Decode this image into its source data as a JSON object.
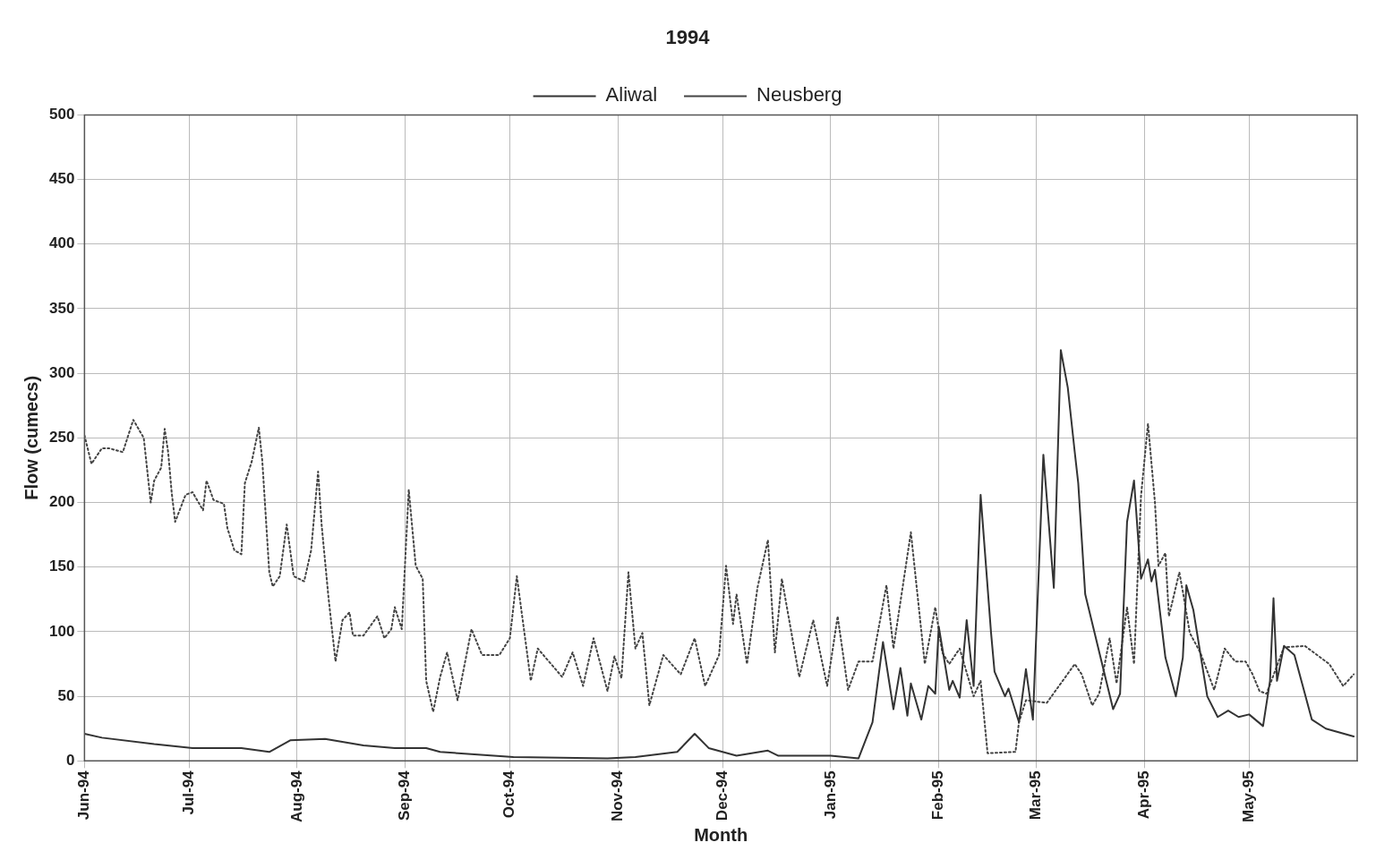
{
  "chart_data": {
    "type": "line",
    "title": "1994",
    "xlabel": "Month",
    "ylabel": "Flow (cumecs)",
    "xlim": [
      "1994-06-01",
      "1995-06-01"
    ],
    "xticks": [
      {
        "value": "1994-06-01",
        "label": "Jun-94"
      },
      {
        "value": "1994-07-01",
        "label": "Jul-94"
      },
      {
        "value": "1994-08-01",
        "label": "Aug-94"
      },
      {
        "value": "1994-09-01",
        "label": "Sep-94"
      },
      {
        "value": "1994-10-01",
        "label": "Oct-94"
      },
      {
        "value": "1994-11-01",
        "label": "Nov-94"
      },
      {
        "value": "1994-12-01",
        "label": "Dec-94"
      },
      {
        "value": "1995-01-01",
        "label": "Jan-95"
      },
      {
        "value": "1995-02-01",
        "label": "Feb-95"
      },
      {
        "value": "1995-03-01",
        "label": "Mar-95"
      },
      {
        "value": "1995-04-01",
        "label": "Apr-95"
      },
      {
        "value": "1995-05-01",
        "label": "May-95"
      }
    ],
    "ylim": [
      0,
      500
    ],
    "yticks": [
      0,
      50,
      100,
      150,
      200,
      250,
      300,
      350,
      400,
      450,
      500
    ],
    "grid": true,
    "legend": "top",
    "marker": "none",
    "series": [
      {
        "name": "Aliwal",
        "color": "#333333",
        "line_style": "solid",
        "x": [
          "1994-06-01",
          "1994-06-06",
          "1994-06-21",
          "1994-07-02",
          "1994-07-16",
          "1994-07-24",
          "1994-07-30",
          "1994-08-09",
          "1994-08-20",
          "1994-08-29",
          "1994-09-07",
          "1994-09-11",
          "1994-10-02",
          "1994-10-29",
          "1994-11-06",
          "1994-11-18",
          "1994-11-23",
          "1994-11-27",
          "1994-12-05",
          "1994-12-14",
          "1994-12-17",
          "1995-01-01",
          "1995-01-09",
          "1995-01-13",
          "1995-01-16",
          "1995-01-19",
          "1995-01-21",
          "1995-01-23",
          "1995-01-24",
          "1995-01-27",
          "1995-01-29",
          "1995-01-31",
          "1995-02-01",
          "1995-02-04",
          "1995-02-05",
          "1995-02-07",
          "1995-02-09",
          "1995-02-11",
          "1995-02-13",
          "1995-02-16",
          "1995-02-17",
          "1995-02-20",
          "1995-02-21",
          "1995-02-24",
          "1995-02-26",
          "1995-02-28",
          "1995-03-03",
          "1995-03-06",
          "1995-03-08",
          "1995-03-10",
          "1995-03-12",
          "1995-03-13",
          "1995-03-15",
          "1995-03-23",
          "1995-03-25",
          "1995-03-27",
          "1995-03-29",
          "1995-03-31",
          "1995-04-02",
          "1995-04-03",
          "1995-04-04",
          "1995-04-07",
          "1995-04-10",
          "1995-04-12",
          "1995-04-13",
          "1995-04-15",
          "1995-04-19",
          "1995-04-22",
          "1995-04-25",
          "1995-04-28",
          "1995-05-01",
          "1995-05-05",
          "1995-05-07",
          "1995-05-08",
          "1995-05-09",
          "1995-05-11",
          "1995-05-14",
          "1995-05-19",
          "1995-05-23",
          "1995-05-31"
        ],
        "values": [
          21,
          18,
          13,
          10,
          10,
          7,
          16,
          17,
          12,
          10,
          10,
          7,
          3,
          2,
          3,
          7,
          21,
          10,
          4,
          8,
          4,
          4,
          2,
          30,
          92,
          40,
          72,
          35,
          60,
          32,
          58,
          52,
          104,
          55,
          62,
          49,
          109,
          58,
          206,
          99,
          69,
          50,
          56,
          30,
          71,
          32,
          237,
          134,
          318,
          289,
          239,
          215,
          129,
          40,
          52,
          185,
          217,
          141,
          156,
          139,
          148,
          80,
          50,
          80,
          136,
          117,
          50,
          34,
          39,
          34,
          36,
          27,
          62,
          126,
          62,
          89,
          82,
          32,
          25,
          19
        ]
      },
      {
        "name": "Neusberg",
        "color": "#444444",
        "line_style": "dotted",
        "x": [
          "1994-06-01",
          "1994-06-03",
          "1994-06-06",
          "1994-06-08",
          "1994-06-12",
          "1994-06-15",
          "1994-06-18",
          "1994-06-20",
          "1994-06-21",
          "1994-06-23",
          "1994-06-24",
          "1994-06-25",
          "1994-06-26",
          "1994-06-27",
          "1994-06-30",
          "1994-07-02",
          "1994-07-05",
          "1994-07-06",
          "1994-07-08",
          "1994-07-11",
          "1994-07-12",
          "1994-07-14",
          "1994-07-16",
          "1994-07-17",
          "1994-07-19",
          "1994-07-21",
          "1994-07-22",
          "1994-07-24",
          "1994-07-25",
          "1994-07-27",
          "1994-07-29",
          "1994-07-31",
          "1994-08-03",
          "1994-08-05",
          "1994-08-07",
          "1994-08-08",
          "1994-08-10",
          "1994-08-12",
          "1994-08-14",
          "1994-08-16",
          "1994-08-17",
          "1994-08-20",
          "1994-08-24",
          "1994-08-26",
          "1994-08-28",
          "1994-08-29",
          "1994-08-31",
          "1994-09-02",
          "1994-09-04",
          "1994-09-06",
          "1994-09-07",
          "1994-09-09",
          "1994-09-11",
          "1994-09-13",
          "1994-09-16",
          "1994-09-20",
          "1994-09-23",
          "1994-09-28",
          "1994-10-01",
          "1994-10-03",
          "1994-10-07",
          "1994-10-09",
          "1994-10-16",
          "1994-10-19",
          "1994-10-22",
          "1994-10-25",
          "1994-10-29",
          "1994-10-31",
          "1994-11-02",
          "1994-11-04",
          "1994-11-06",
          "1994-11-08",
          "1994-11-10",
          "1994-11-14",
          "1994-11-19",
          "1994-11-23",
          "1994-11-26",
          "1994-11-30",
          "1994-12-02",
          "1994-12-04",
          "1994-12-05",
          "1994-12-08",
          "1994-12-11",
          "1994-12-14",
          "1994-12-16",
          "1994-12-18",
          "1994-12-23",
          "1994-12-27",
          "1994-12-31",
          "1995-01-03",
          "1995-01-06",
          "1995-01-09",
          "1995-01-13",
          "1995-01-17",
          "1995-01-19",
          "1995-01-24",
          "1995-01-28",
          "1995-01-31",
          "1995-02-02",
          "1995-02-04",
          "1995-02-07",
          "1995-02-11",
          "1995-02-13",
          "1995-02-15",
          "1995-02-23",
          "1995-02-24",
          "1995-02-26",
          "1995-03-04",
          "1995-03-08",
          "1995-03-12",
          "1995-03-14",
          "1995-03-17",
          "1995-03-19",
          "1995-03-22",
          "1995-03-24",
          "1995-03-27",
          "1995-03-29",
          "1995-03-31",
          "1995-04-02",
          "1995-04-04",
          "1995-04-05",
          "1995-04-07",
          "1995-04-08",
          "1995-04-11",
          "1995-04-12",
          "1995-04-14",
          "1995-04-17",
          "1995-04-21",
          "1995-04-24",
          "1995-04-27",
          "1995-04-30",
          "1995-05-02",
          "1995-05-04",
          "1995-05-06",
          "1995-05-11",
          "1995-05-17",
          "1995-05-24",
          "1995-05-28",
          "1995-05-31"
        ],
        "values": [
          252,
          230,
          242,
          242,
          239,
          264,
          250,
          200,
          217,
          227,
          257,
          239,
          208,
          185,
          206,
          208,
          194,
          217,
          202,
          199,
          180,
          163,
          160,
          215,
          232,
          258,
          232,
          146,
          135,
          143,
          183,
          143,
          139,
          163,
          224,
          183,
          126,
          77,
          109,
          115,
          97,
          97,
          112,
          95,
          102,
          119,
          102,
          210,
          151,
          141,
          62,
          38,
          65,
          84,
          47,
          102,
          82,
          82,
          95,
          143,
          62,
          87,
          65,
          84,
          58,
          95,
          54,
          81,
          64,
          146,
          87,
          99,
          43,
          82,
          67,
          95,
          58,
          82,
          151,
          106,
          129,
          75,
          134,
          171,
          84,
          141,
          65,
          109,
          58,
          112,
          55,
          77,
          77,
          136,
          87,
          177,
          75,
          119,
          84,
          75,
          87,
          50,
          62,
          6,
          7,
          30,
          47,
          45,
          60,
          75,
          67,
          43,
          52,
          95,
          60,
          119,
          75,
          205,
          261,
          200,
          151,
          161,
          112,
          146,
          131,
          99,
          84,
          55,
          87,
          77,
          77,
          67,
          54,
          52,
          88,
          89,
          75,
          58,
          67
        ]
      }
    ]
  }
}
